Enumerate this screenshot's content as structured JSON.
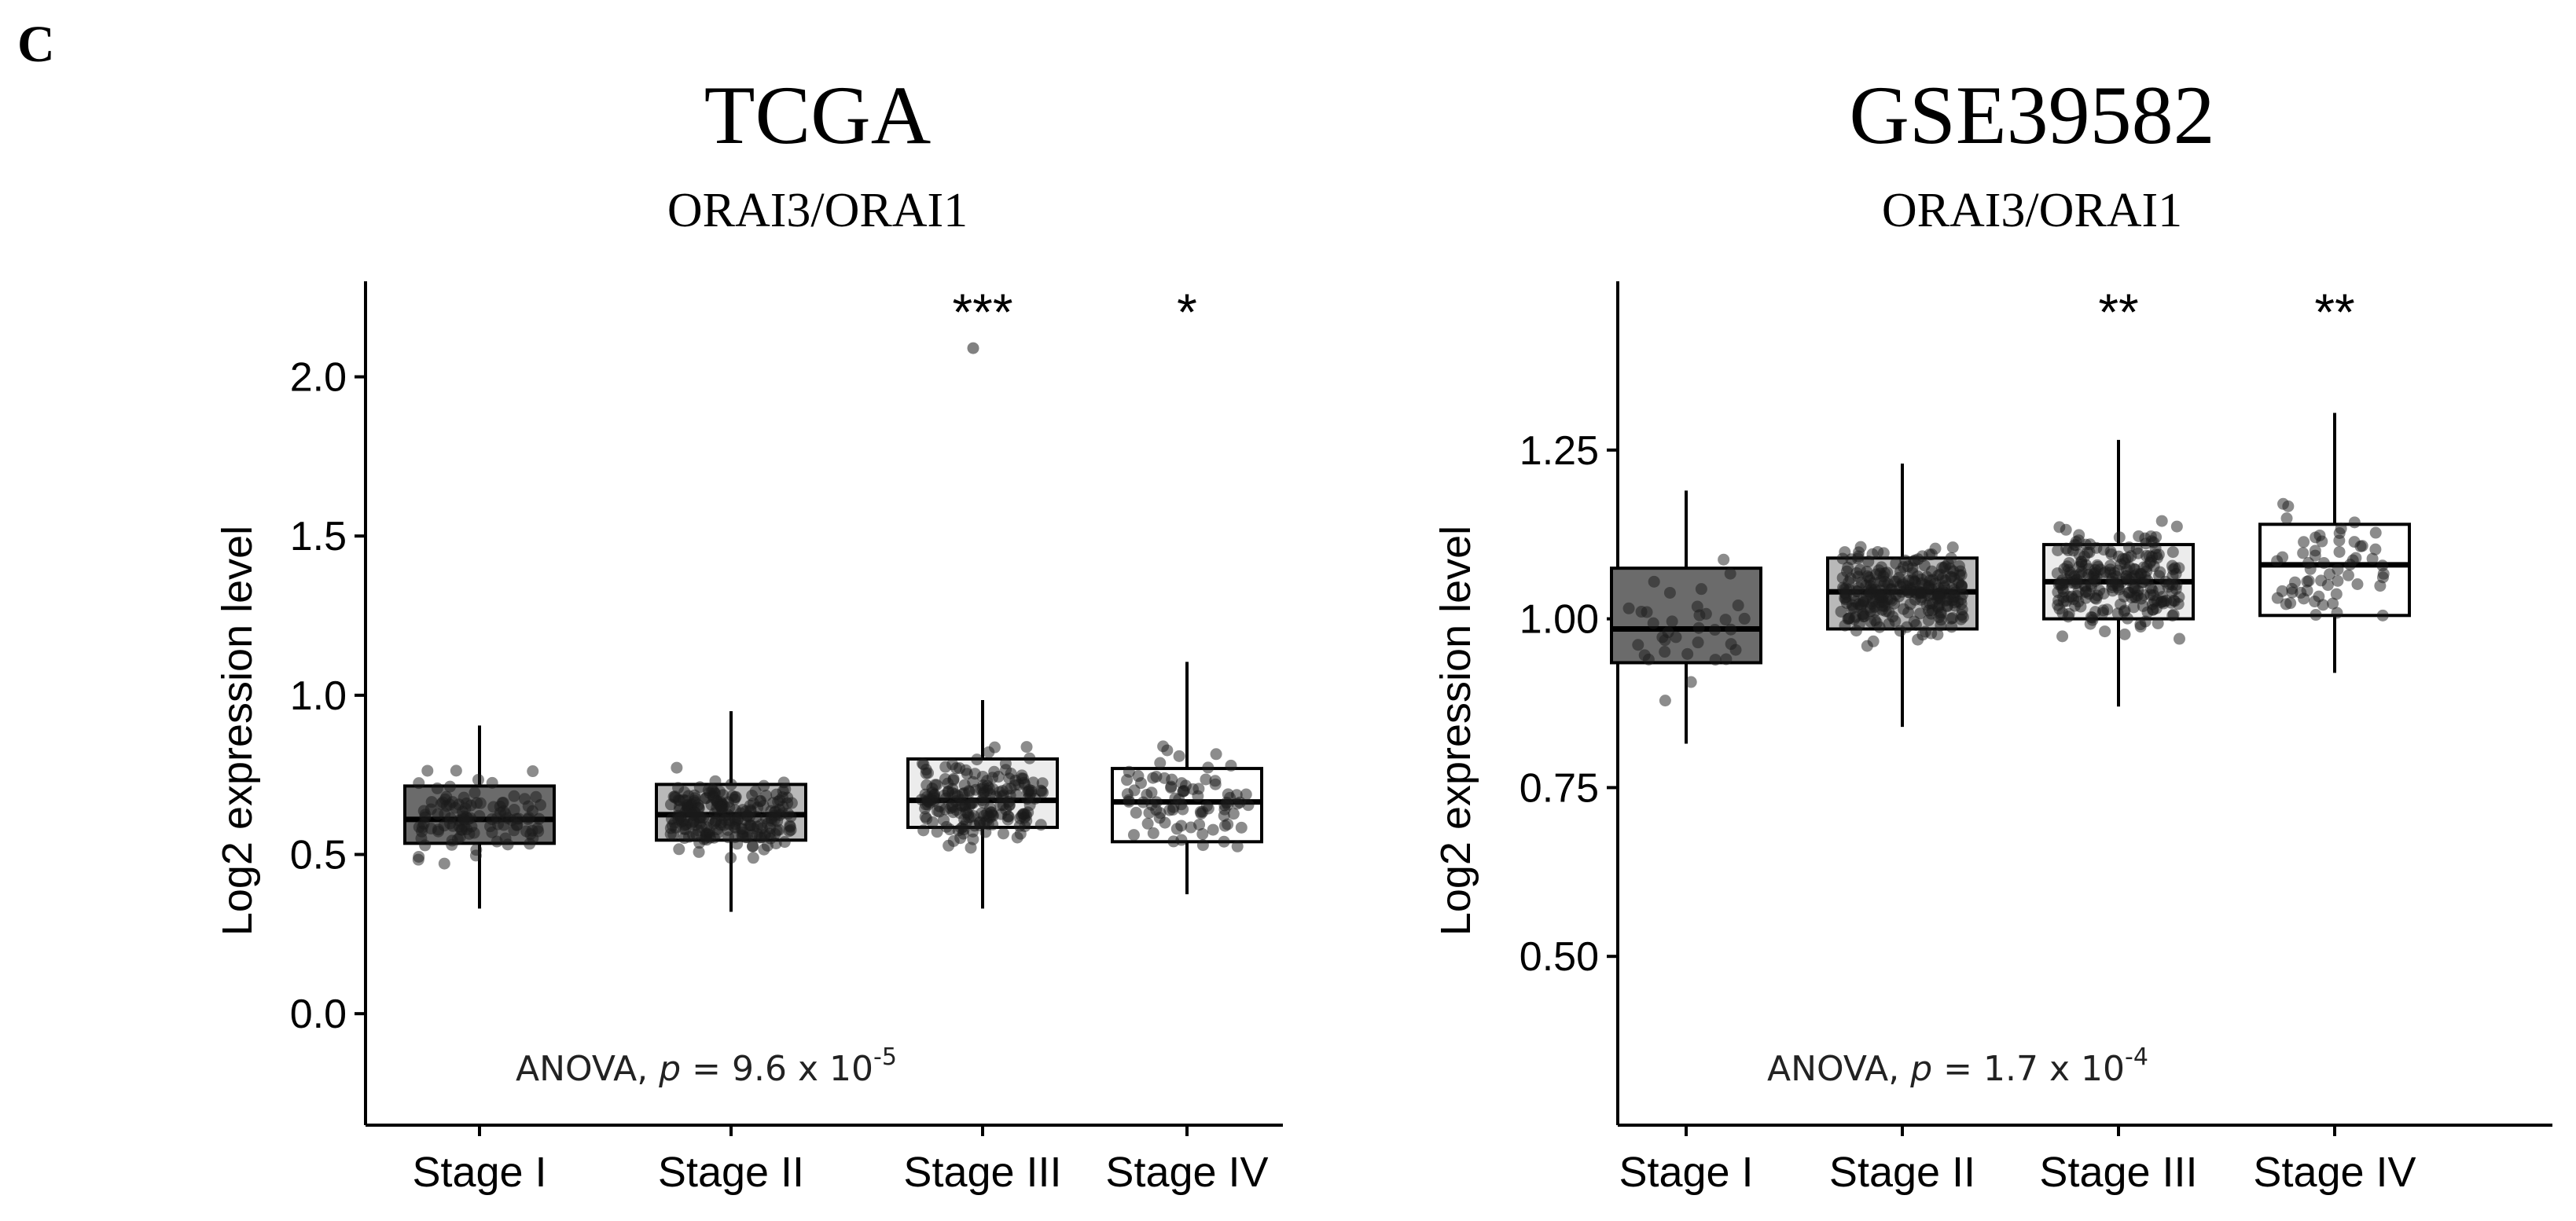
{
  "panel_label": "C",
  "chart_data": [
    {
      "type": "boxplot",
      "title": "TCGA",
      "subtitle": "ORAI3/ORAI1",
      "ylabel": "Log2 expression level",
      "xlabel": "",
      "ylim": [
        -0.35,
        2.3
      ],
      "yticks": [
        0.0,
        0.5,
        1.0,
        1.5,
        2.0
      ],
      "ytick_labels": [
        "0.0",
        "0.5",
        "1.0",
        "1.5",
        "2.0"
      ],
      "categories": [
        "Stage I",
        "Stage II",
        "Stage III",
        "Stage IV"
      ],
      "box_fill_colors": [
        "#6b6b6b",
        "#b9b9b9",
        "#ececec",
        "#ffffff"
      ],
      "boxes": [
        {
          "whisker_low": 0.33,
          "q1": 0.535,
          "median": 0.61,
          "q3": 0.715,
          "whisker_high": 0.905,
          "n_points": 110,
          "spread": [
            0.25,
            0.92
          ]
        },
        {
          "whisker_low": 0.32,
          "q1": 0.545,
          "median": 0.625,
          "q3": 0.72,
          "whisker_high": 0.95,
          "n_points": 230,
          "spread": [
            0.29,
            1.16
          ]
        },
        {
          "whisker_low": 0.33,
          "q1": 0.585,
          "median": 0.67,
          "q3": 0.8,
          "whisker_high": 0.985,
          "n_points": 200,
          "spread": [
            0.32,
            1.15
          ]
        },
        {
          "whisker_low": 0.375,
          "q1": 0.54,
          "median": 0.665,
          "q3": 0.77,
          "whisker_high": 1.105,
          "n_points": 85,
          "spread": [
            0.37,
            1.16
          ]
        }
      ],
      "outliers": [
        {
          "category": "Stage III",
          "value": 2.09
        }
      ],
      "significance": [
        {
          "category": "Stage III",
          "label": "***"
        },
        {
          "category": "Stage IV",
          "label": "*"
        }
      ],
      "annotation": {
        "prefix": "ANOVA, ",
        "p": "p",
        "equals": " = 9.6 x 10",
        "exponent": "-5"
      }
    },
    {
      "type": "boxplot",
      "title": "GSE39582",
      "subtitle": "ORAI3/ORAI1",
      "ylabel": "Log2 expression level",
      "xlabel": "",
      "ylim": [
        0.25,
        1.5
      ],
      "yticks": [
        0.5,
        0.75,
        1.0,
        1.25
      ],
      "ytick_labels": [
        "0.50",
        "0.75",
        "1.00",
        "1.25"
      ],
      "categories": [
        "Stage I",
        "Stage II",
        "Stage III",
        "Stage IV"
      ],
      "box_fill_colors": [
        "#6b6b6b",
        "#b9b9b9",
        "#ececec",
        "#ffffff"
      ],
      "boxes": [
        {
          "whisker_low": 0.815,
          "q1": 0.935,
          "median": 0.985,
          "q3": 1.075,
          "whisker_high": 1.19,
          "n_points": 35,
          "spread": [
            0.81,
            1.19
          ]
        },
        {
          "whisker_low": 0.84,
          "q1": 0.985,
          "median": 1.04,
          "q3": 1.09,
          "whisker_high": 1.23,
          "n_points": 270,
          "spread": [
            0.83,
            1.34
          ]
        },
        {
          "whisker_low": 0.87,
          "q1": 1.0,
          "median": 1.055,
          "q3": 1.11,
          "whisker_high": 1.265,
          "n_points": 240,
          "spread": [
            0.87,
            1.33
          ]
        },
        {
          "whisker_low": 0.92,
          "q1": 1.005,
          "median": 1.08,
          "q3": 1.14,
          "whisker_high": 1.305,
          "n_points": 60,
          "spread": [
            0.92,
            1.31
          ]
        }
      ],
      "outliers": [],
      "significance": [
        {
          "category": "Stage III",
          "label": "**"
        },
        {
          "category": "Stage IV",
          "label": "**"
        }
      ],
      "annotation": {
        "prefix": "ANOVA, ",
        "p": "p",
        "equals": " = 1.7 x 10",
        "exponent": "-4"
      }
    }
  ]
}
